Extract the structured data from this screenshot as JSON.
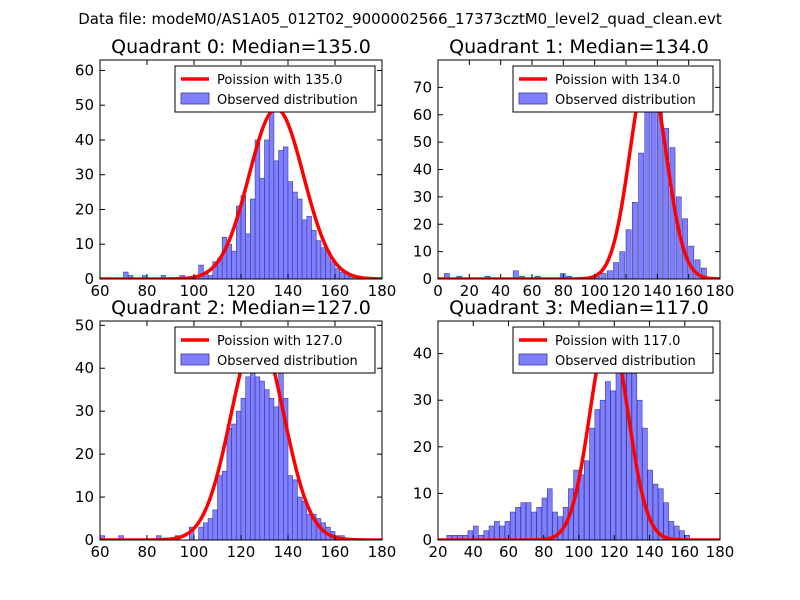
{
  "figure_title": "Data file: modeM0/AS1A05_012T02_9000002566_17373cztM0_level2_quad_clean.evt",
  "colors": {
    "bar_fill": "#7f7fff",
    "bar_edge": "#3a3a9a",
    "curve": "#ff0000"
  },
  "chart_data": [
    {
      "type": "bar",
      "title": "Quadrant 0: Median=135.0",
      "xlim": [
        60,
        180
      ],
      "ylim": [
        0,
        63
      ],
      "xticks": [
        60,
        80,
        100,
        120,
        140,
        160,
        180
      ],
      "yticks": [
        0,
        10,
        20,
        30,
        40,
        50,
        60
      ],
      "bin_width": 2,
      "bins": [
        [
          70,
          2
        ],
        [
          72,
          1
        ],
        [
          78,
          1
        ],
        [
          86,
          1
        ],
        [
          94,
          1
        ],
        [
          102,
          4
        ],
        [
          104,
          2
        ],
        [
          106,
          1
        ],
        [
          108,
          5
        ],
        [
          110,
          6
        ],
        [
          112,
          12
        ],
        [
          114,
          10
        ],
        [
          116,
          8
        ],
        [
          118,
          21
        ],
        [
          120,
          24
        ],
        [
          122,
          13
        ],
        [
          124,
          23
        ],
        [
          126,
          40
        ],
        [
          128,
          29
        ],
        [
          130,
          40
        ],
        [
          132,
          53
        ],
        [
          134,
          34
        ],
        [
          136,
          37
        ],
        [
          138,
          38
        ],
        [
          140,
          28
        ],
        [
          142,
          25
        ],
        [
          144,
          23
        ],
        [
          146,
          17
        ],
        [
          148,
          18
        ],
        [
          150,
          14
        ],
        [
          152,
          11
        ],
        [
          154,
          9
        ],
        [
          156,
          8
        ],
        [
          158,
          5
        ],
        [
          160,
          3
        ],
        [
          162,
          2
        ],
        [
          164,
          2
        ],
        [
          166,
          1
        ]
      ],
      "poisson_mean": 135,
      "poisson_peak": 49,
      "legend": [
        "Poission with 135.0",
        "Observed distribution"
      ]
    },
    {
      "type": "bar",
      "title": "Quadrant 1: Median=134.0",
      "xlim": [
        0,
        180
      ],
      "ylim": [
        0,
        80
      ],
      "xticks": [
        0,
        20,
        40,
        60,
        80,
        100,
        120,
        140,
        160,
        180
      ],
      "yticks": [
        0,
        10,
        20,
        30,
        40,
        50,
        60,
        70
      ],
      "bin_width": 3.3,
      "bins": [
        [
          4,
          2
        ],
        [
          12,
          1
        ],
        [
          30,
          1
        ],
        [
          48,
          3
        ],
        [
          52,
          1
        ],
        [
          62,
          1
        ],
        [
          78,
          2
        ],
        [
          82,
          1
        ],
        [
          100,
          1
        ],
        [
          104,
          2
        ],
        [
          108,
          3
        ],
        [
          112,
          6
        ],
        [
          116,
          10
        ],
        [
          120,
          18
        ],
        [
          124,
          28
        ],
        [
          128,
          46
        ],
        [
          132,
          62
        ],
        [
          136,
          74
        ],
        [
          140,
          65
        ],
        [
          144,
          55
        ],
        [
          148,
          48
        ],
        [
          152,
          30
        ],
        [
          156,
          22
        ],
        [
          160,
          12
        ],
        [
          164,
          7
        ],
        [
          168,
          4
        ]
      ],
      "poisson_mean": 134,
      "poisson_peak": 76,
      "legend": [
        "Poission with 134.0",
        "Observed distribution"
      ]
    },
    {
      "type": "bar",
      "title": "Quadrant 2: Median=127.0",
      "xlim": [
        60,
        180
      ],
      "ylim": [
        0,
        51
      ],
      "xticks": [
        60,
        80,
        100,
        120,
        140,
        160,
        180
      ],
      "yticks": [
        0,
        10,
        20,
        30,
        40,
        50
      ],
      "bin_width": 2,
      "bins": [
        [
          60,
          1
        ],
        [
          68,
          1
        ],
        [
          84,
          1
        ],
        [
          92,
          1
        ],
        [
          98,
          3
        ],
        [
          102,
          3
        ],
        [
          104,
          4
        ],
        [
          106,
          5
        ],
        [
          108,
          7
        ],
        [
          110,
          15
        ],
        [
          112,
          16
        ],
        [
          114,
          26
        ],
        [
          116,
          27
        ],
        [
          118,
          30
        ],
        [
          120,
          33
        ],
        [
          122,
          38
        ],
        [
          124,
          40
        ],
        [
          126,
          38
        ],
        [
          128,
          37
        ],
        [
          130,
          35
        ],
        [
          132,
          33
        ],
        [
          134,
          31
        ],
        [
          136,
          39
        ],
        [
          138,
          33
        ],
        [
          140,
          15
        ],
        [
          142,
          14
        ],
        [
          144,
          10
        ],
        [
          146,
          9
        ],
        [
          148,
          6
        ],
        [
          150,
          6
        ],
        [
          152,
          5
        ],
        [
          154,
          4
        ],
        [
          156,
          3
        ],
        [
          158,
          2
        ],
        [
          160,
          1
        ],
        [
          162,
          1
        ]
      ],
      "poisson_mean": 127,
      "poisson_peak": 48,
      "legend": [
        "Poission with 127.0",
        "Observed distribution"
      ]
    },
    {
      "type": "bar",
      "title": "Quadrant 3: Median=117.0",
      "xlim": [
        20,
        180
      ],
      "ylim": [
        0,
        47
      ],
      "xticks": [
        20,
        40,
        60,
        80,
        100,
        120,
        140,
        160,
        180
      ],
      "yticks": [
        0,
        10,
        20,
        30,
        40
      ],
      "bin_width": 2.8,
      "bins": [
        [
          25,
          1
        ],
        [
          28,
          1
        ],
        [
          31,
          1
        ],
        [
          34,
          1
        ],
        [
          37,
          2
        ],
        [
          40,
          3
        ],
        [
          43,
          1
        ],
        [
          46,
          2
        ],
        [
          49,
          3
        ],
        [
          52,
          4
        ],
        [
          55,
          3
        ],
        [
          58,
          4
        ],
        [
          61,
          6
        ],
        [
          64,
          7
        ],
        [
          67,
          8
        ],
        [
          70,
          8
        ],
        [
          73,
          6
        ],
        [
          76,
          7
        ],
        [
          79,
          9
        ],
        [
          82,
          11
        ],
        [
          85,
          6
        ],
        [
          88,
          5
        ],
        [
          91,
          7
        ],
        [
          94,
          11
        ],
        [
          97,
          15
        ],
        [
          100,
          14
        ],
        [
          103,
          17
        ],
        [
          106,
          24
        ],
        [
          109,
          28
        ],
        [
          112,
          30
        ],
        [
          115,
          34
        ],
        [
          118,
          32
        ],
        [
          121,
          41
        ],
        [
          124,
          36
        ],
        [
          127,
          44
        ],
        [
          130,
          37
        ],
        [
          133,
          30
        ],
        [
          136,
          24
        ],
        [
          139,
          15
        ],
        [
          142,
          12
        ],
        [
          145,
          11
        ],
        [
          148,
          8
        ],
        [
          151,
          4
        ],
        [
          154,
          3
        ],
        [
          157,
          2
        ],
        [
          160,
          1
        ]
      ],
      "poisson_mean": 117,
      "poisson_peak": 45,
      "legend": [
        "Poission with 117.0",
        "Observed distribution"
      ]
    }
  ]
}
